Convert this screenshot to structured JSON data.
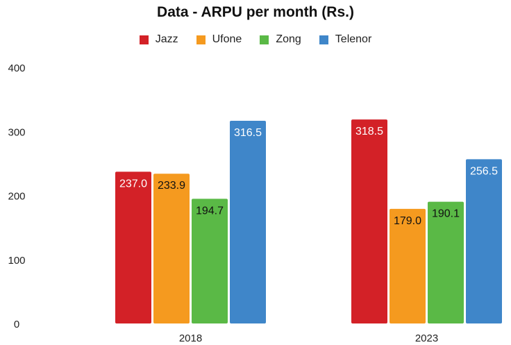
{
  "chart_data": {
    "type": "bar",
    "title": "Data - ARPU per month (Rs.)",
    "categories": [
      "2018",
      "2023"
    ],
    "series": [
      {
        "name": "Jazz",
        "color": "#d32127",
        "values": [
          237.0,
          318.5
        ]
      },
      {
        "name": "Ufone",
        "color": "#f59a1f",
        "values": [
          233.9,
          179.0
        ]
      },
      {
        "name": "Zong",
        "color": "#5ab946",
        "values": [
          194.7,
          190.1
        ]
      },
      {
        "name": "Telenor",
        "color": "#3f86c9",
        "values": [
          316.5,
          256.5
        ]
      }
    ],
    "data_labels": [
      [
        "237.0",
        "318.5"
      ],
      [
        "233.9",
        "179.0"
      ],
      [
        "194.7",
        "190.1"
      ],
      [
        "316.5",
        "256.5"
      ]
    ],
    "label_colors": [
      "#ffffff",
      "#111111",
      "#111111",
      "#ffffff"
    ],
    "ylim": [
      0,
      400
    ],
    "yticks": [
      "0",
      "100",
      "200",
      "300",
      "400"
    ],
    "legend_position": "top",
    "grid": false
  }
}
